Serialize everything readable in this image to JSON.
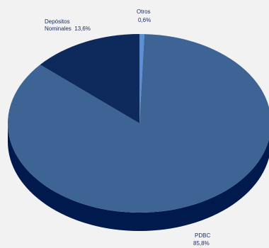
{
  "chart_data": {
    "type": "pie",
    "style": "3d",
    "title": "",
    "slices": [
      {
        "label": "PDBC",
        "value_text": "85,8%",
        "value": 85.8,
        "color": "#3d6494",
        "side_color": "#001a4d"
      },
      {
        "label": "Depósitos Nominales",
        "value_text": "13,6%",
        "value": 13.6,
        "color": "#0e2a5c",
        "side_color": "#00103a"
      },
      {
        "label": "Otros",
        "value_text": "0,6%",
        "value": 0.6,
        "color": "#5b8fd6",
        "side_color": "#00103a"
      }
    ],
    "label_lines": {
      "otros": [
        "Otros",
        "0,6%"
      ],
      "depositos": [
        "Depósitos",
        "Nominales  13,6%"
      ],
      "pdbc": [
        "PDBC",
        "85,8%"
      ]
    }
  }
}
